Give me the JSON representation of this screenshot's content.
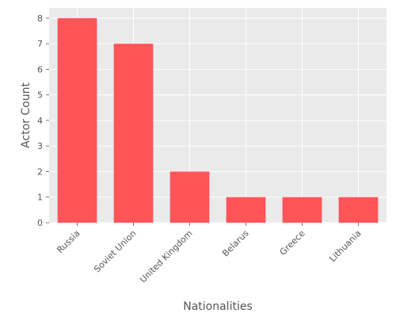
{
  "chart_data": {
    "type": "bar",
    "title": "",
    "xlabel": "Nationalities",
    "ylabel": "Actor Count",
    "categories": [
      "Russia",
      "Soviet Union",
      "United Kingdom",
      "Belarus",
      "Greece",
      "Lithuania"
    ],
    "values": [
      8,
      7,
      2,
      1,
      1,
      1
    ],
    "ylim": [
      0,
      8.4
    ],
    "yticks": [
      0,
      1,
      2,
      3,
      4,
      5,
      6,
      7,
      8
    ],
    "grid": true,
    "legend": "none",
    "colors": {
      "bar": "#FF5559",
      "plot_background": "#EAEAEA",
      "grid": "#FFFFFF",
      "text": "#555555"
    }
  }
}
